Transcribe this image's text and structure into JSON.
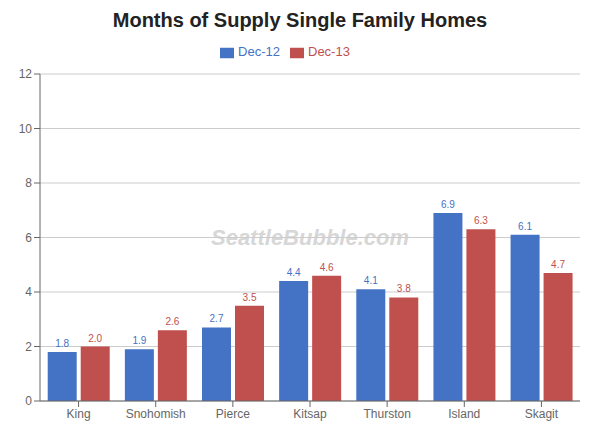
{
  "chart_data": {
    "type": "bar",
    "title": "Months of Supply Single Family Homes",
    "categories": [
      "King",
      "Snohomish",
      "Pierce",
      "Kitsap",
      "Thurston",
      "Island",
      "Skagit"
    ],
    "series": [
      {
        "name": "Dec-12",
        "color": "#4472C4",
        "values": [
          1.8,
          1.9,
          2.7,
          4.4,
          4.1,
          6.9,
          6.1
        ],
        "value_labels": [
          "1.8",
          "1.9",
          "2.7",
          "4.4",
          "4.1",
          "6.9",
          "6.1"
        ]
      },
      {
        "name": "Dec-13",
        "color": "#C0504D",
        "values": [
          2.0,
          2.6,
          3.5,
          4.6,
          3.8,
          6.3,
          4.7
        ],
        "value_labels": [
          "2.0",
          "2.6",
          "3.5",
          "4.6",
          "3.8",
          "6.3",
          "4.7"
        ]
      }
    ],
    "ylim": [
      0,
      12
    ],
    "yticks": [
      0,
      2,
      4,
      6,
      8,
      10,
      12
    ],
    "grid": true,
    "data_labels": true,
    "legend": "top",
    "annotations": [
      "SeattleBubble.com"
    ]
  }
}
